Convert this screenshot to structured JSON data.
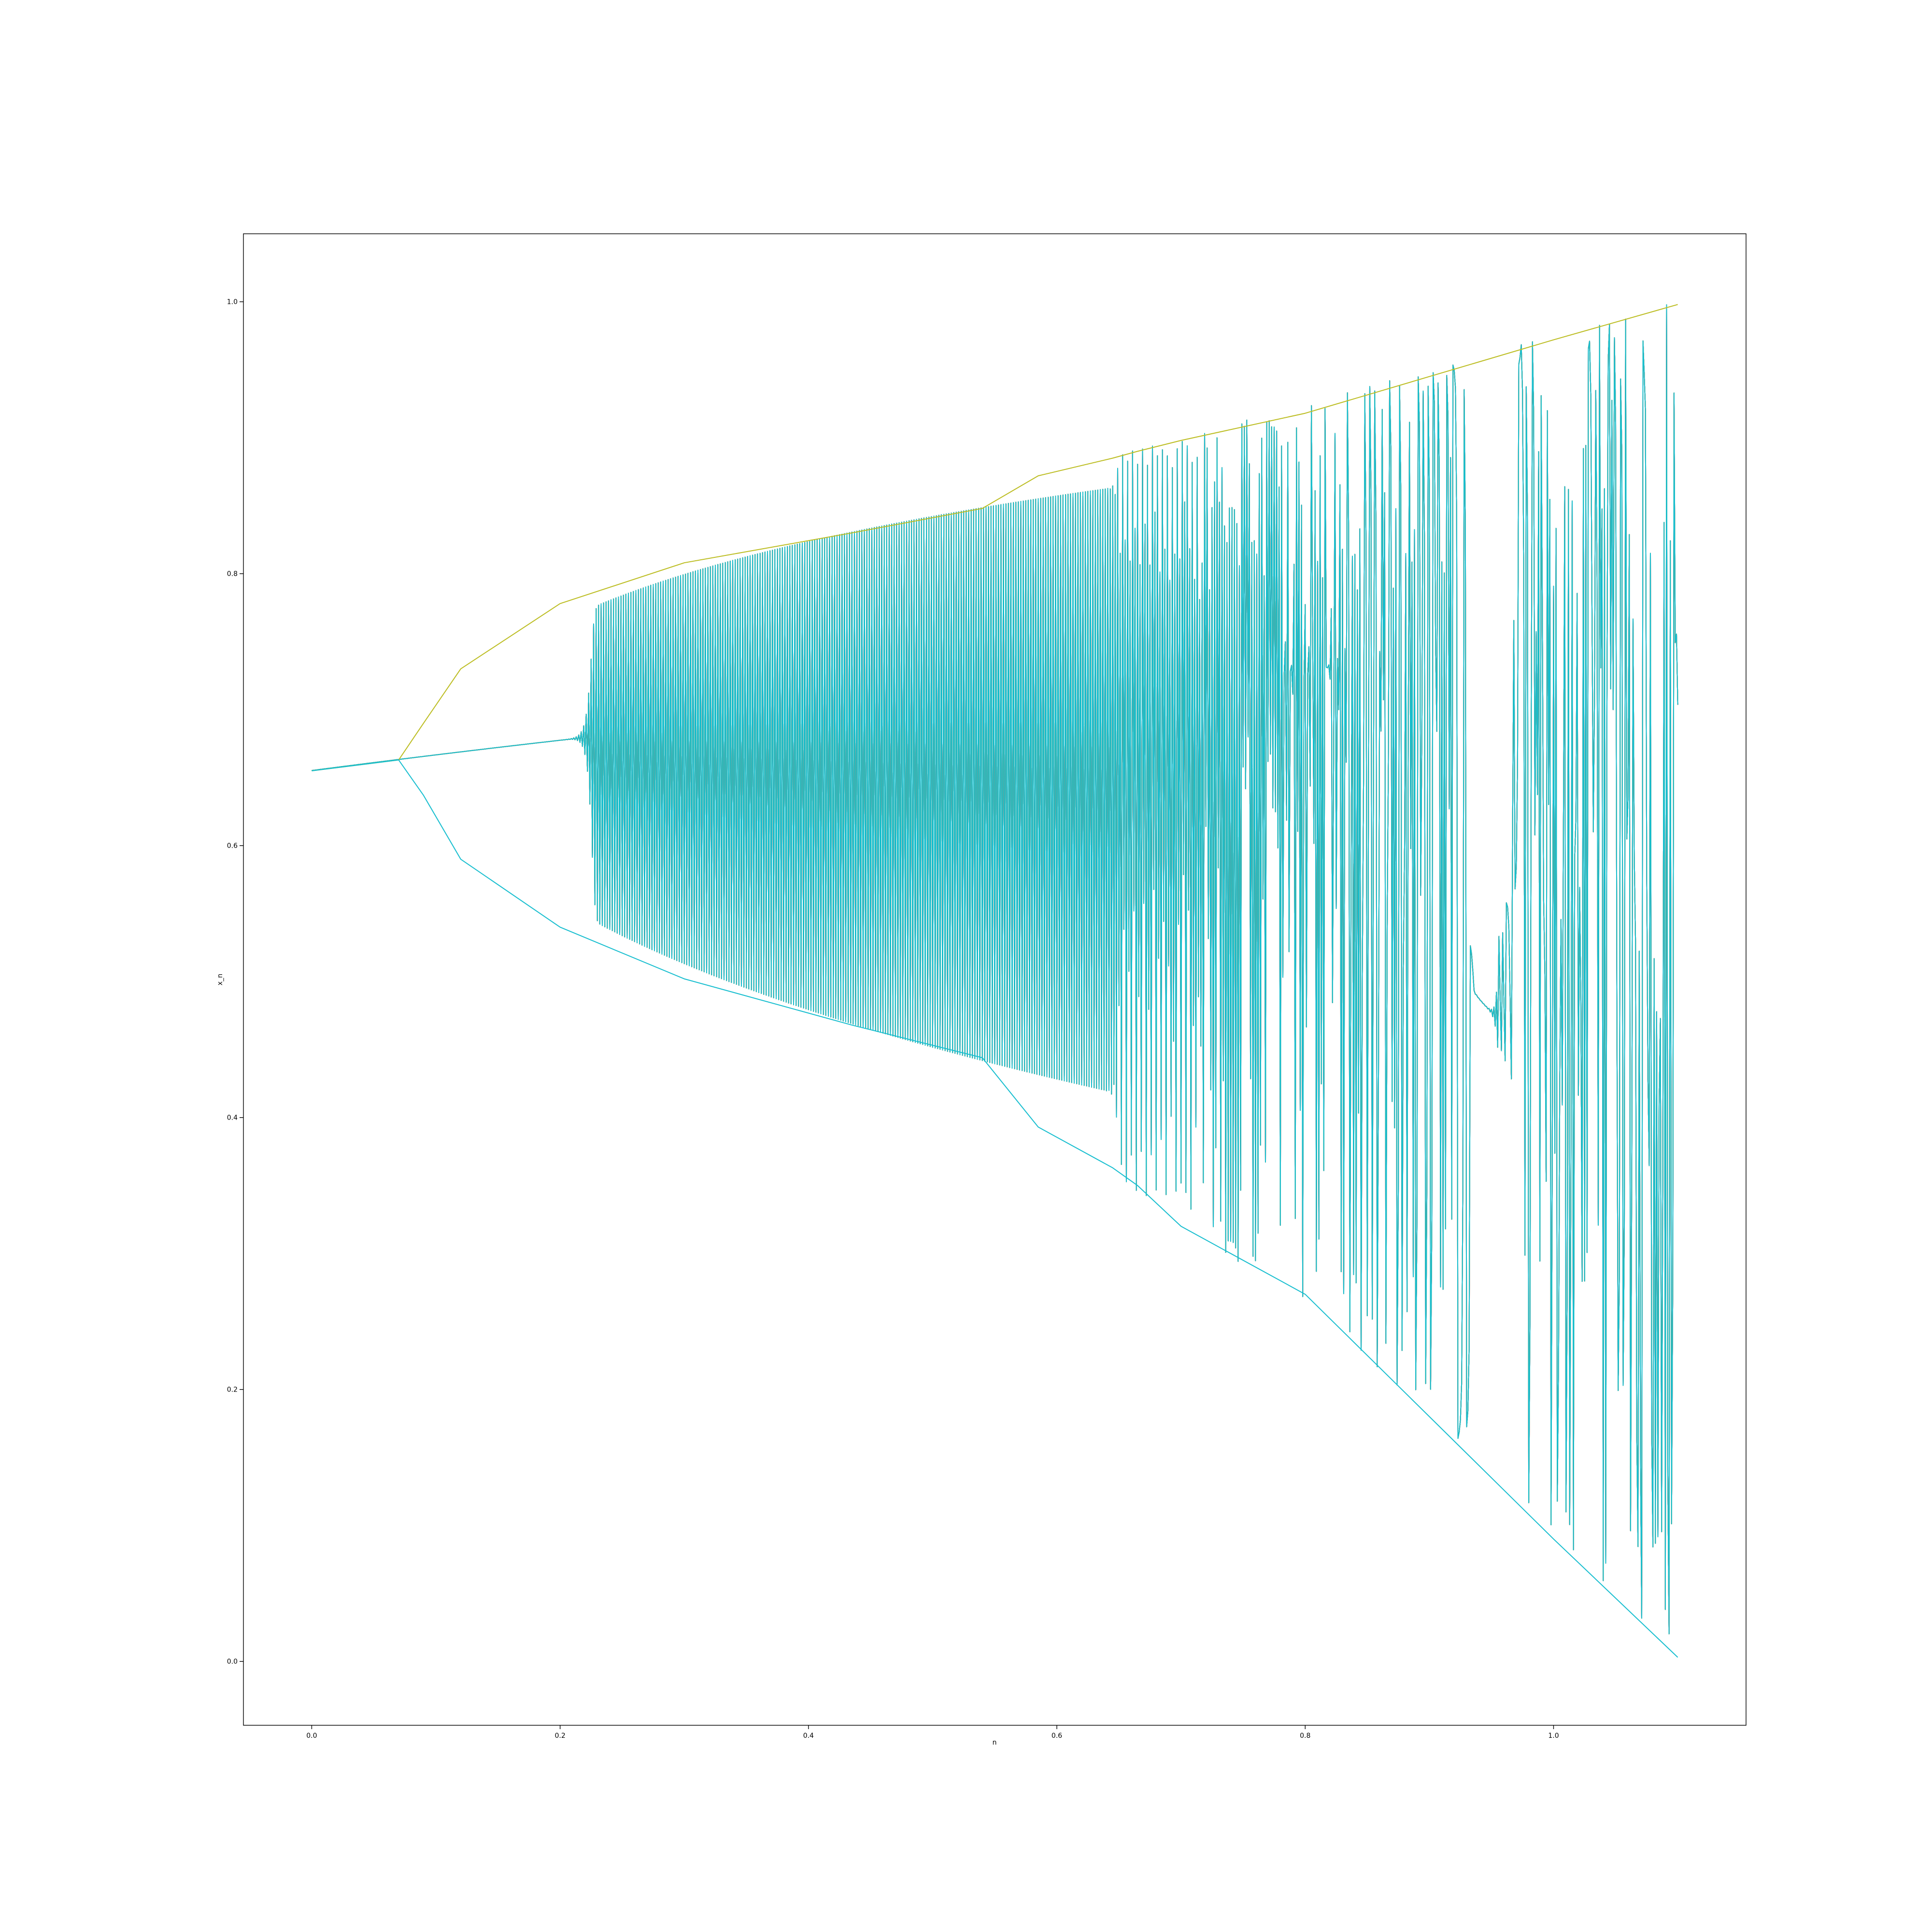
{
  "chart_data": {
    "type": "line",
    "title": "",
    "xlabel": "n",
    "ylabel": "x_n",
    "xlim": [
      -0.055,
      1.155
    ],
    "ylim": [
      -0.047,
      1.05
    ],
    "x_ticks": [
      "0.0",
      "0.2",
      "0.4",
      "0.6",
      "0.8",
      "1.0"
    ],
    "y_ticks": [
      "0.0",
      "0.2",
      "0.4",
      "0.6",
      "0.8",
      "1.0"
    ],
    "grid": false,
    "legend": "none",
    "colors": [
      "#1f77b4",
      "#ff7f0e",
      "#2ca02c",
      "#d62728",
      "#9467bd",
      "#8c564b",
      "#e377c2",
      "#7f7f7f",
      "#bcbd22",
      "#17becf"
    ],
    "description_of_data": "Bifurcation-style traces of the logistic map; many overlapping series. Sampled representative envelope values below.",
    "series": [
      {
        "x": [
          0.0,
          0.07,
          0.09,
          0.12,
          0.2,
          0.3,
          0.435,
          0.54,
          0.585,
          0.645,
          0.665,
          0.7,
          0.8,
          0.9,
          1.0,
          1.1
        ],
        "values": [
          0.655,
          0.663,
          0.69,
          0.73,
          0.778,
          0.808,
          0.83,
          0.848,
          0.872,
          0.885,
          0.89,
          0.898,
          0.918,
          0.945,
          0.972,
          0.998
        ]
      },
      {
        "x": [
          0.0,
          0.07,
          0.09,
          0.12,
          0.2,
          0.3,
          0.435,
          0.54,
          0.585,
          0.645,
          0.665,
          0.7,
          0.8,
          0.9,
          1.0,
          1.1
        ],
        "values": [
          0.655,
          0.663,
          0.637,
          0.59,
          0.54,
          0.502,
          0.468,
          0.444,
          0.393,
          0.363,
          0.35,
          0.32,
          0.27,
          0.18,
          0.09,
          0.003
        ]
      }
    ]
  }
}
